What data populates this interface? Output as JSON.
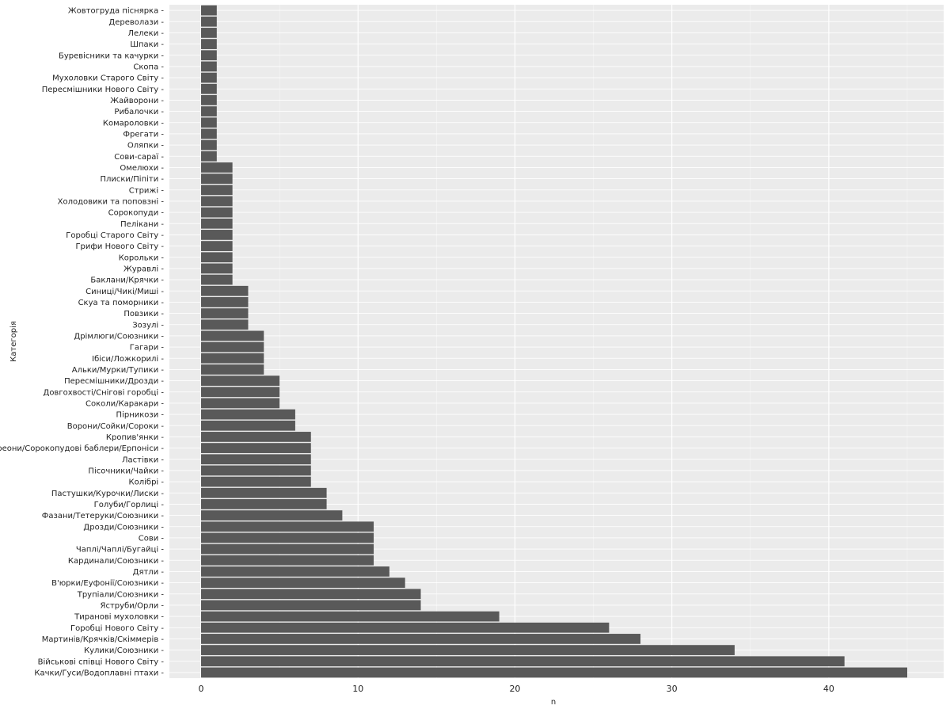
{
  "chart_data": {
    "type": "bar",
    "orientation": "horizontal",
    "title": "",
    "xlabel": "n",
    "ylabel": "Категорія",
    "xlim": [
      0,
      47
    ],
    "xticks": [
      0,
      10,
      20,
      30,
      40
    ],
    "grid": true,
    "background": "#ebebeb",
    "bar_color": "#595959",
    "categories": [
      "Жовтогруда піснярка",
      "Дереволази",
      "Лелеки",
      "Шпаки",
      "Буревісники та качурки",
      "Скопа",
      "Мухоловки Старого Світу",
      "Пересмішники Нового Світу",
      "Жайворони",
      "Рибалочки",
      "Комароловки",
      "Фрегати",
      "Оляпки",
      "Сови-сараї",
      "Омелюхи",
      "Плиски/Піпіти",
      "Стрижі",
      "Холодовики та поповзні",
      "Сорокопуди",
      "Пелікани",
      "Горобці Старого Світу",
      "Грифи Нового Світу",
      "Корольки",
      "Журавлі",
      "Баклани/Крячки",
      "Синиці/Чикі/Миші",
      "Скуа та поморники",
      "Повзики",
      "Зозулі",
      "Дрімлюги/Союзники",
      "Гагари",
      "Ібіси/Ложкорилі",
      "Альки/Мурки/Тупики",
      "Пересмішники/Дрозди",
      "Довгохвості/Снігові горобці",
      "Соколи/Каракари",
      "Пірникози",
      "Ворони/Сойки/Сороки",
      "Кропив'янки",
      "Віреони/Сорокопудові баблери/Ерпоніси",
      "Ластівки",
      "Пісочники/Чайки",
      "Колібрі",
      "Пастушки/Курочки/Лиски",
      "Голуби/Горлиці",
      "Фазани/Тетеруки/Союзники",
      "Дрозди/Союзники",
      "Сови",
      "Чаплі/Чаплі/Бугайці",
      "Кардинали/Союзники",
      "Дятли",
      "В'юрки/Еуфонії/Союзники",
      "Трупіали/Союзники",
      "Яструби/Орли",
      "Тиранові мухоловки",
      "Горобці Нового Світу",
      "Мартинів/Крячків/Скіммерів",
      "Кулики/Союзники",
      "Військові співці Нового Світу",
      "Качки/Гуси/Водоплавні птахи"
    ],
    "values": [
      1,
      1,
      1,
      1,
      1,
      1,
      1,
      1,
      1,
      1,
      1,
      1,
      1,
      1,
      2,
      2,
      2,
      2,
      2,
      2,
      2,
      2,
      2,
      2,
      2,
      3,
      3,
      3,
      3,
      4,
      4,
      4,
      4,
      5,
      5,
      5,
      6,
      6,
      7,
      7,
      7,
      7,
      7,
      8,
      8,
      9,
      11,
      11,
      11,
      11,
      12,
      13,
      14,
      14,
      19,
      26,
      28,
      34,
      41,
      45
    ]
  }
}
